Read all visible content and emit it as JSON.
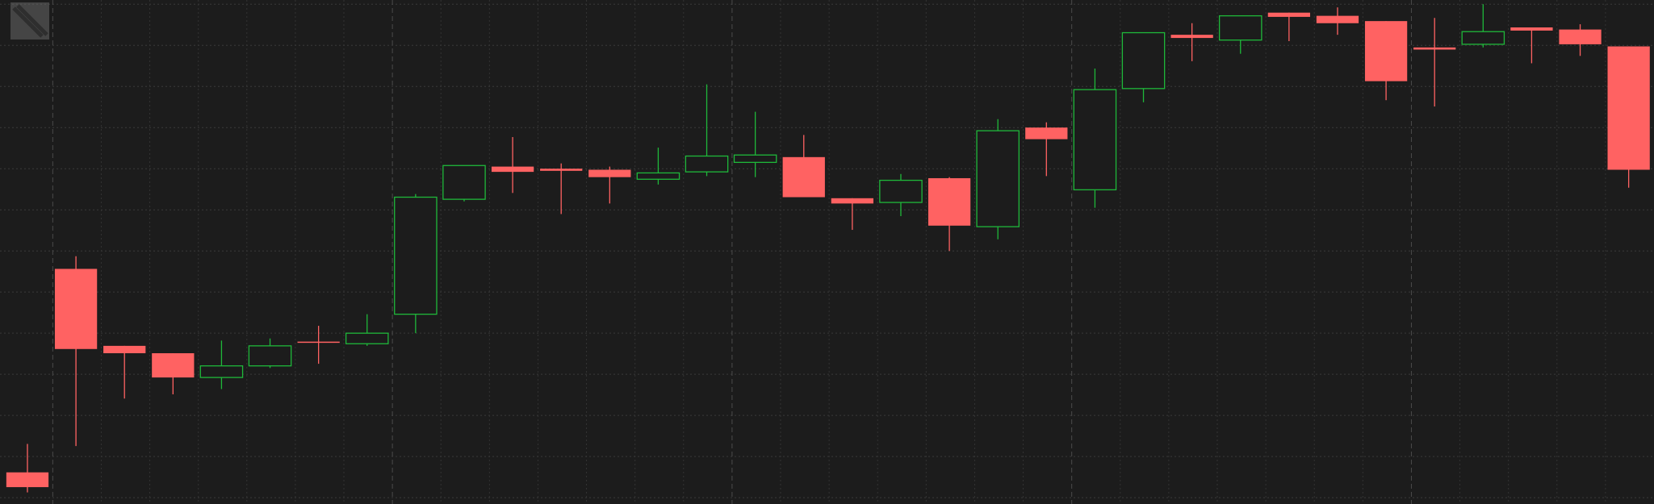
{
  "chart_data": {
    "type": "candlestick",
    "ylim": [
      0,
      478
    ],
    "yticks": [
      6,
      45,
      84,
      123,
      162,
      201,
      240,
      279,
      318,
      357,
      396,
      435,
      474
    ],
    "grid": true,
    "up_color": "#1fb83a",
    "down_color": "#ff6262",
    "open": [
      30,
      223,
      150,
      143,
      120,
      131,
      154,
      152,
      180,
      289,
      320,
      318,
      317,
      308,
      315,
      324,
      329,
      290,
      286,
      309,
      263,
      357,
      298,
      394,
      445,
      440,
      466,
      463,
      458,
      433,
      436,
      452,
      450,
      434
    ],
    "high": [
      57,
      235,
      150,
      143,
      155,
      157,
      169,
      180,
      294,
      321,
      348,
      323,
      320,
      338,
      398,
      372,
      350,
      290,
      313,
      310,
      365,
      362,
      413,
      447,
      456,
      463,
      466,
      471,
      458,
      461,
      474,
      452,
      455,
      434
    ],
    "low": [
      11,
      55,
      100,
      104,
      109,
      129,
      133,
      150,
      162,
      287,
      295,
      275,
      285,
      303,
      311,
      310,
      291,
      260,
      273,
      240,
      251,
      311,
      281,
      381,
      420,
      427,
      439,
      445,
      383,
      377,
      433,
      418,
      425,
      300
    ],
    "close": [
      16,
      147,
      143,
      120,
      131,
      150,
      153,
      162,
      291,
      321,
      315,
      316,
      310,
      314,
      330,
      331,
      291,
      285,
      307,
      264,
      354,
      346,
      393,
      447,
      442,
      463,
      462,
      456,
      401,
      431,
      448,
      449,
      436,
      317
    ]
  }
}
